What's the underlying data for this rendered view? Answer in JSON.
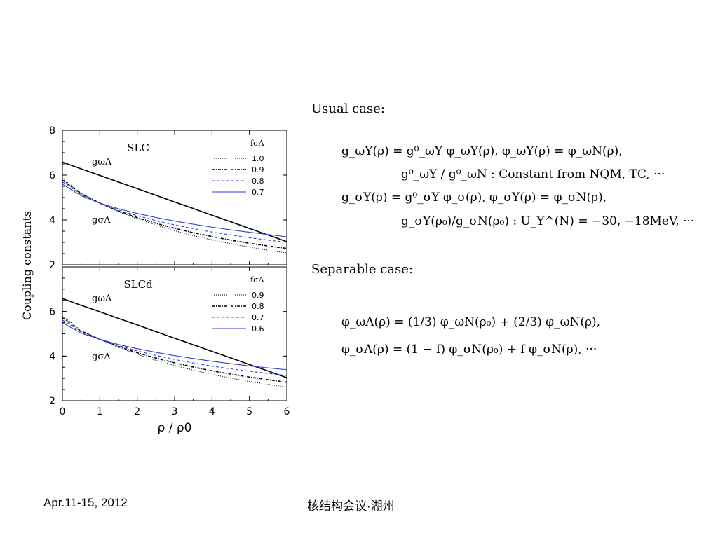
{
  "footer": {
    "date": "Apr.11-15, 2012",
    "event": "核结构会议·湖州"
  },
  "text": {
    "usual_heading": "Usual case:",
    "separable_heading": "Separable case:",
    "usual_eq1": "g_ωY(ρ) = g⁰_ωY φ_ωY(ρ),   φ_ωY(ρ) = φ_ωN(ρ),",
    "usual_eq2": "g⁰_ωY / g⁰_ωN : Constant from NQM, TC, ···",
    "usual_eq3": "g_σY(ρ) = g⁰_σY φ_σ(ρ),   φ_σY(ρ) = φ_σN(ρ),",
    "usual_eq4": "g_σY(ρ₀)/g_σN(ρ₀) : U_Y^(N) = −30, −18MeV, ···",
    "sep_eq1": "φ_ωΛ(ρ) = (1/3) φ_ωN(ρ₀) + (2/3) φ_ωN(ρ),",
    "sep_eq2": "φ_σΛ(ρ) = (1 − f) φ_σN(ρ₀) + f φ_σN(ρ), ···"
  },
  "colors": {
    "black": "#000000",
    "blue": "#2f3fd8"
  },
  "chart_data": [
    {
      "type": "line",
      "title": "SLC",
      "xlabel": "ρ / ρ0",
      "ylabel": "Coupling constants",
      "xlim": [
        0,
        6
      ],
      "ylim": [
        2,
        8
      ],
      "yticks": [
        "2",
        "4",
        "6",
        "8"
      ],
      "legend_title": "fσΛ",
      "annotations": [
        "gωΛ",
        "gσΛ"
      ],
      "x": [
        0,
        0.5,
        1,
        1.5,
        2,
        2.5,
        3,
        3.5,
        4,
        4.5,
        5,
        5.5,
        6
      ],
      "omega": [
        6.58,
        6.28,
        5.99,
        5.69,
        5.4,
        5.1,
        4.8,
        4.51,
        4.21,
        3.92,
        3.62,
        3.33,
        3.03
      ],
      "series": [
        {
          "name": "1.0",
          "style": "dotted",
          "color": "black",
          "values": [
            5.85,
            5.2,
            4.75,
            4.37,
            4.05,
            3.77,
            3.52,
            3.3,
            3.11,
            2.94,
            2.79,
            2.65,
            2.53
          ]
        },
        {
          "name": "0.9",
          "style": "dashdot",
          "color": "black",
          "values": [
            5.78,
            5.17,
            4.75,
            4.4,
            4.11,
            3.85,
            3.63,
            3.43,
            3.26,
            3.1,
            2.96,
            2.84,
            2.73
          ]
        },
        {
          "name": "0.8",
          "style": "dashed",
          "color": "blue",
          "values": [
            5.7,
            5.13,
            4.75,
            4.45,
            4.19,
            3.97,
            3.78,
            3.61,
            3.46,
            3.33,
            3.21,
            3.1,
            3.0
          ]
        },
        {
          "name": "0.7",
          "style": "solid",
          "color": "blue",
          "values": [
            5.6,
            5.08,
            4.75,
            4.5,
            4.29,
            4.11,
            3.95,
            3.81,
            3.68,
            3.56,
            3.45,
            3.35,
            3.25
          ]
        }
      ]
    },
    {
      "type": "line",
      "title": "SLCd",
      "xlabel": "ρ / ρ0",
      "ylabel": "Coupling constants",
      "xlim": [
        0,
        6
      ],
      "ylim": [
        2,
        8
      ],
      "yticks": [
        "2",
        "4",
        "6"
      ],
      "xticks": [
        "0",
        "1",
        "2",
        "3",
        "4",
        "5",
        "6"
      ],
      "legend_title": "fσΛ",
      "annotations": [
        "gωΛ",
        "gσΛ"
      ],
      "x": [
        0,
        0.5,
        1,
        1.5,
        2,
        2.5,
        3,
        3.5,
        4,
        4.5,
        5,
        5.5,
        6
      ],
      "omega": [
        6.58,
        6.28,
        5.99,
        5.69,
        5.4,
        5.1,
        4.8,
        4.51,
        4.21,
        3.92,
        3.62,
        3.33,
        3.03
      ],
      "series": [
        {
          "name": "0.9",
          "style": "dotted",
          "color": "black",
          "values": [
            5.8,
            5.15,
            4.75,
            4.39,
            4.08,
            3.81,
            3.58,
            3.37,
            3.18,
            3.01,
            2.86,
            2.73,
            2.61
          ]
        },
        {
          "name": "0.8",
          "style": "dashdot",
          "color": "black",
          "values": [
            5.72,
            5.12,
            4.75,
            4.43,
            4.15,
            3.91,
            3.7,
            3.51,
            3.34,
            3.19,
            3.06,
            2.94,
            2.83
          ]
        },
        {
          "name": "0.7",
          "style": "dashed",
          "color": "blue",
          "values": [
            5.62,
            5.08,
            4.75,
            4.47,
            4.23,
            4.03,
            3.85,
            3.69,
            3.55,
            3.43,
            3.32,
            3.22,
            3.13
          ]
        },
        {
          "name": "0.6",
          "style": "solid",
          "color": "blue",
          "values": [
            5.5,
            5.03,
            4.75,
            4.52,
            4.33,
            4.17,
            4.02,
            3.89,
            3.77,
            3.66,
            3.56,
            3.47,
            3.39
          ]
        }
      ]
    }
  ]
}
